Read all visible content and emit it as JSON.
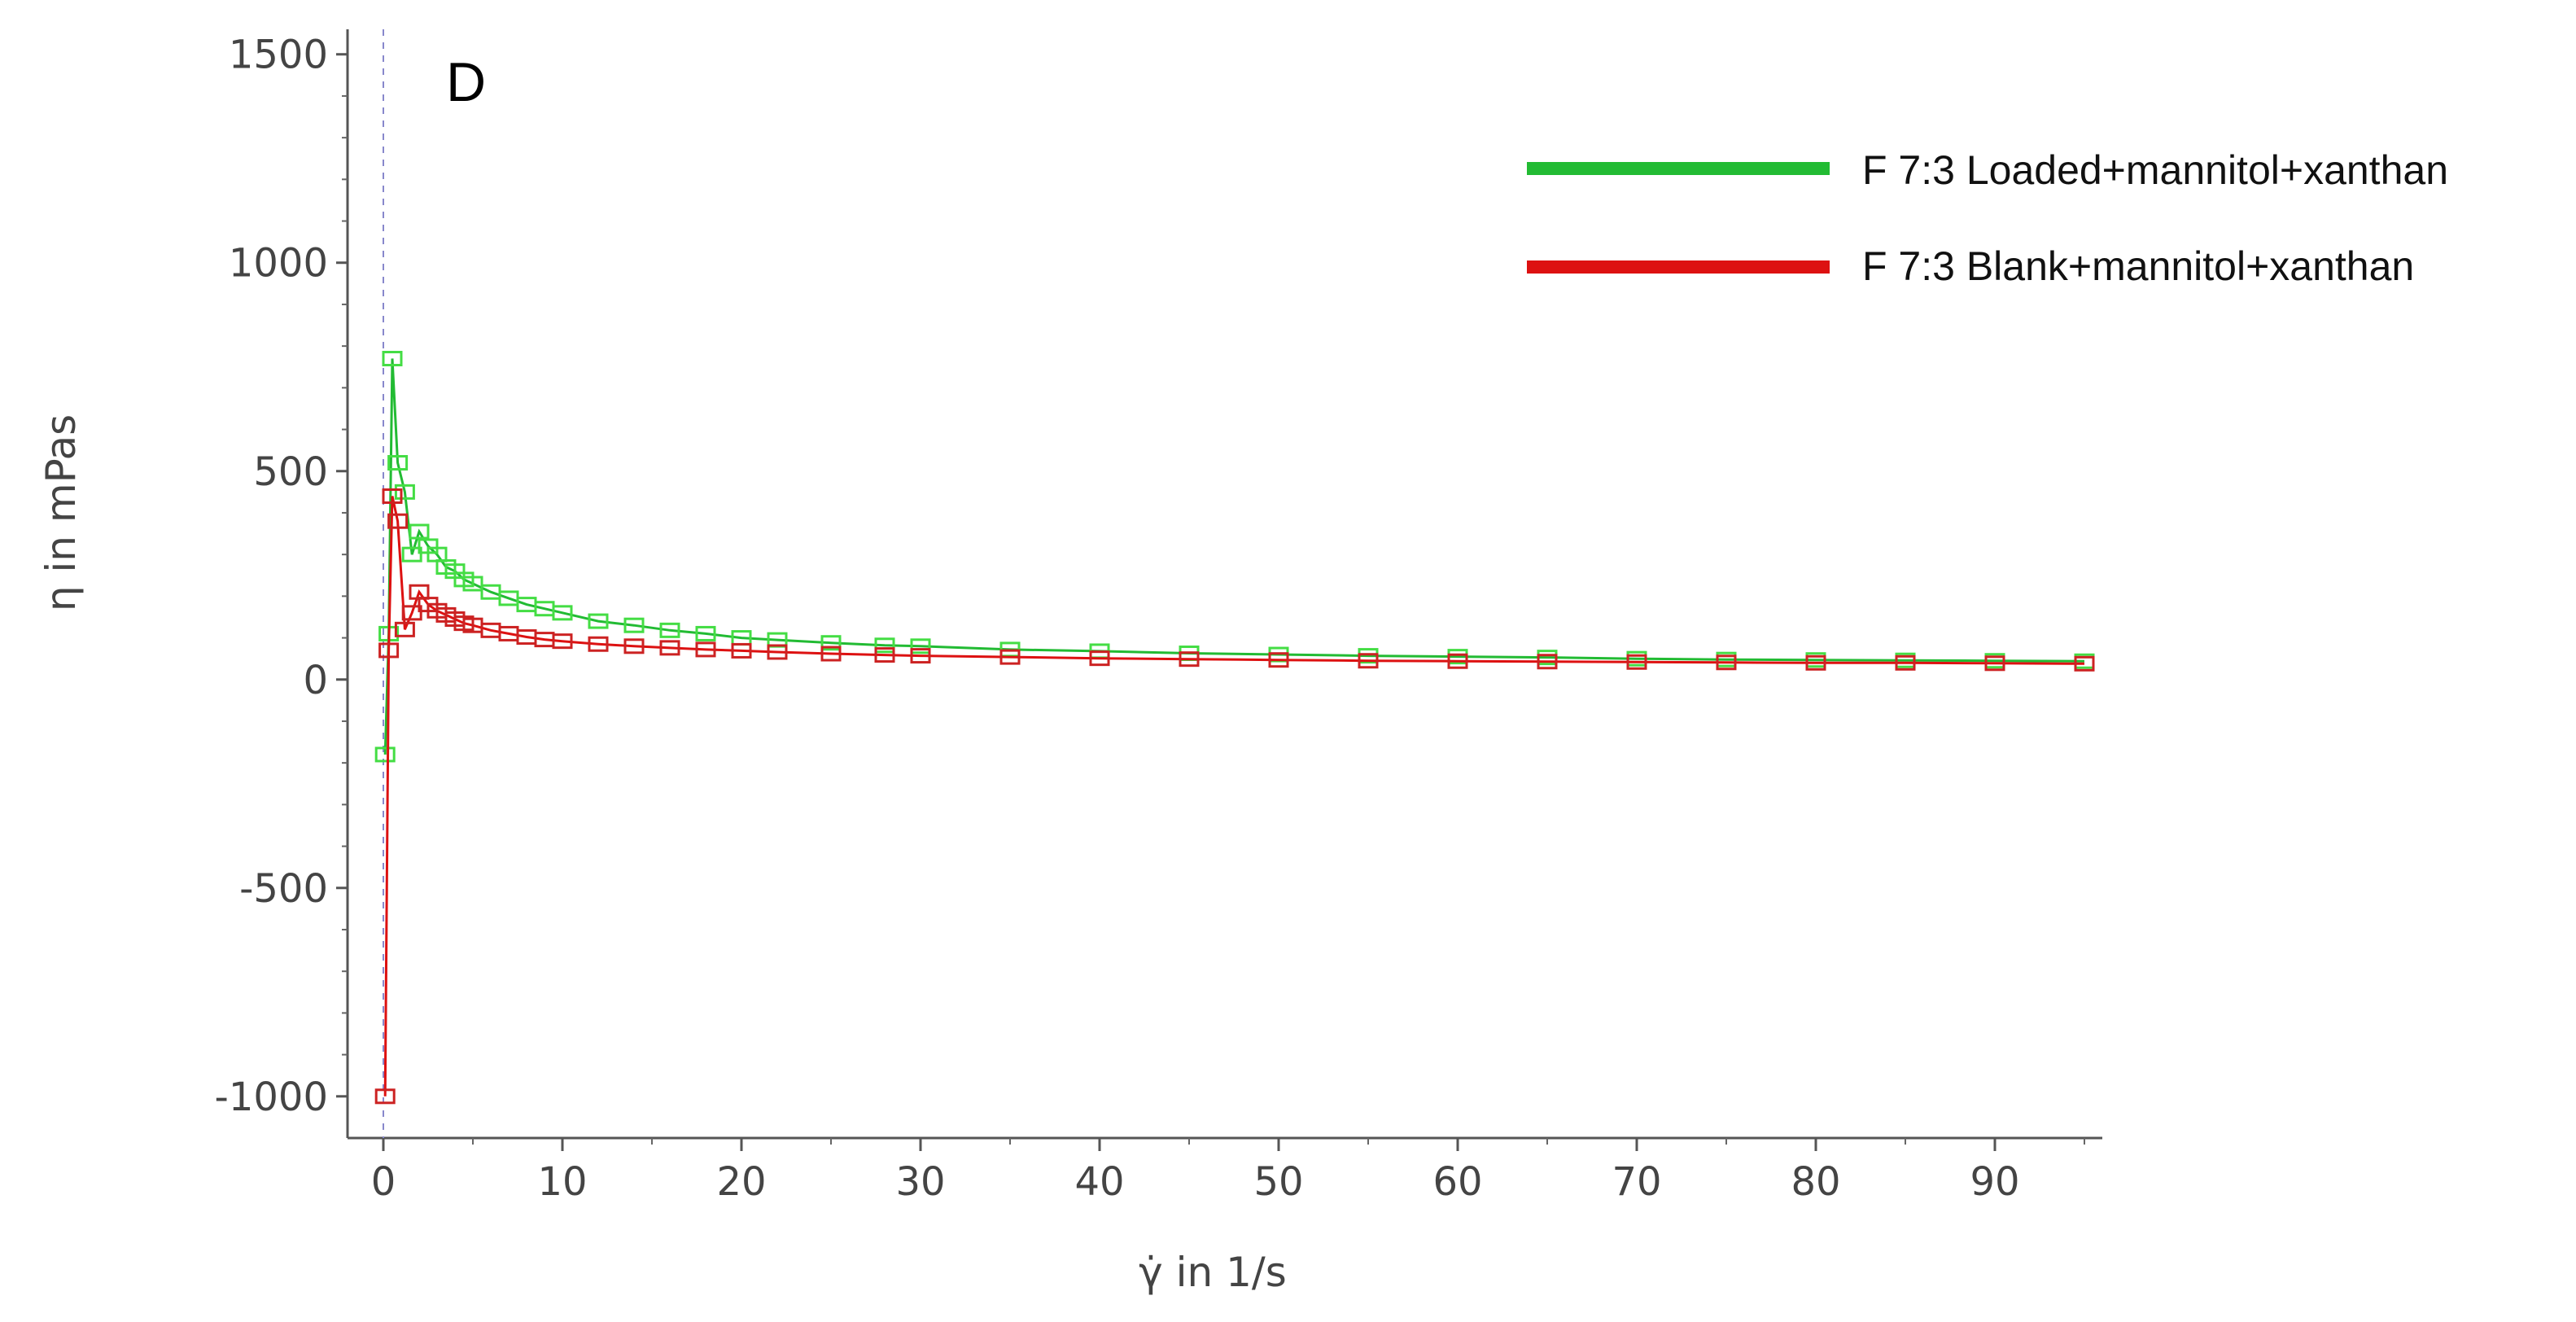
{
  "chart_data": {
    "type": "scatter",
    "panel_label": "D",
    "xlabel": "γ̇ in 1/s",
    "ylabel": "η in mPas",
    "xlim": [
      -2,
      96
    ],
    "ylim": [
      -1100,
      1560
    ],
    "x_ticks": [
      0,
      10,
      20,
      30,
      40,
      50,
      60,
      70,
      80,
      90
    ],
    "y_ticks": [
      -1000,
      -500,
      0,
      500,
      1000,
      1500
    ],
    "y_tick_labels": [
      "-1000",
      "-500",
      "0",
      "500",
      "1000",
      "1500"
    ],
    "grid": false,
    "legend_position": "top-right",
    "series": [
      {
        "name": "F 7:3 Loaded+mannitol+xanthan",
        "color": "#22bb33",
        "marker_color": "#44dd44",
        "x": [
          0.1,
          0.3,
          0.5,
          0.8,
          1.2,
          1.6,
          2,
          2.5,
          3,
          3.5,
          4,
          4.5,
          5,
          6,
          7,
          8,
          9,
          10,
          12,
          14,
          16,
          18,
          20,
          22,
          25,
          28,
          30,
          35,
          40,
          45,
          50,
          55,
          60,
          65,
          70,
          75,
          80,
          85,
          90,
          95
        ],
        "y": [
          -180,
          110,
          770,
          520,
          450,
          300,
          355,
          320,
          300,
          270,
          260,
          240,
          230,
          210,
          195,
          180,
          170,
          160,
          140,
          130,
          118,
          110,
          100,
          95,
          88,
          82,
          80,
          72,
          68,
          63,
          60,
          57,
          55,
          53,
          50,
          48,
          47,
          46,
          45,
          44
        ]
      },
      {
        "name": "F 7:3 Blank+mannitol+xanthan",
        "color": "#dd1111",
        "marker_color": "#cc2222",
        "x": [
          0.1,
          0.3,
          0.5,
          0.8,
          1.2,
          1.6,
          2,
          2.5,
          3,
          3.5,
          4,
          4.5,
          5,
          6,
          7,
          8,
          9,
          10,
          12,
          14,
          16,
          18,
          20,
          22,
          25,
          28,
          30,
          35,
          40,
          45,
          50,
          55,
          60,
          65,
          70,
          75,
          80,
          85,
          90,
          95
        ],
        "y": [
          -1000,
          70,
          440,
          380,
          120,
          160,
          210,
          180,
          165,
          155,
          145,
          135,
          130,
          118,
          110,
          102,
          96,
          92,
          85,
          80,
          76,
          72,
          69,
          66,
          62,
          59,
          57,
          54,
          51,
          49,
          47,
          45,
          44,
          43,
          42,
          41,
          40,
          40,
          39,
          38
        ]
      }
    ]
  }
}
